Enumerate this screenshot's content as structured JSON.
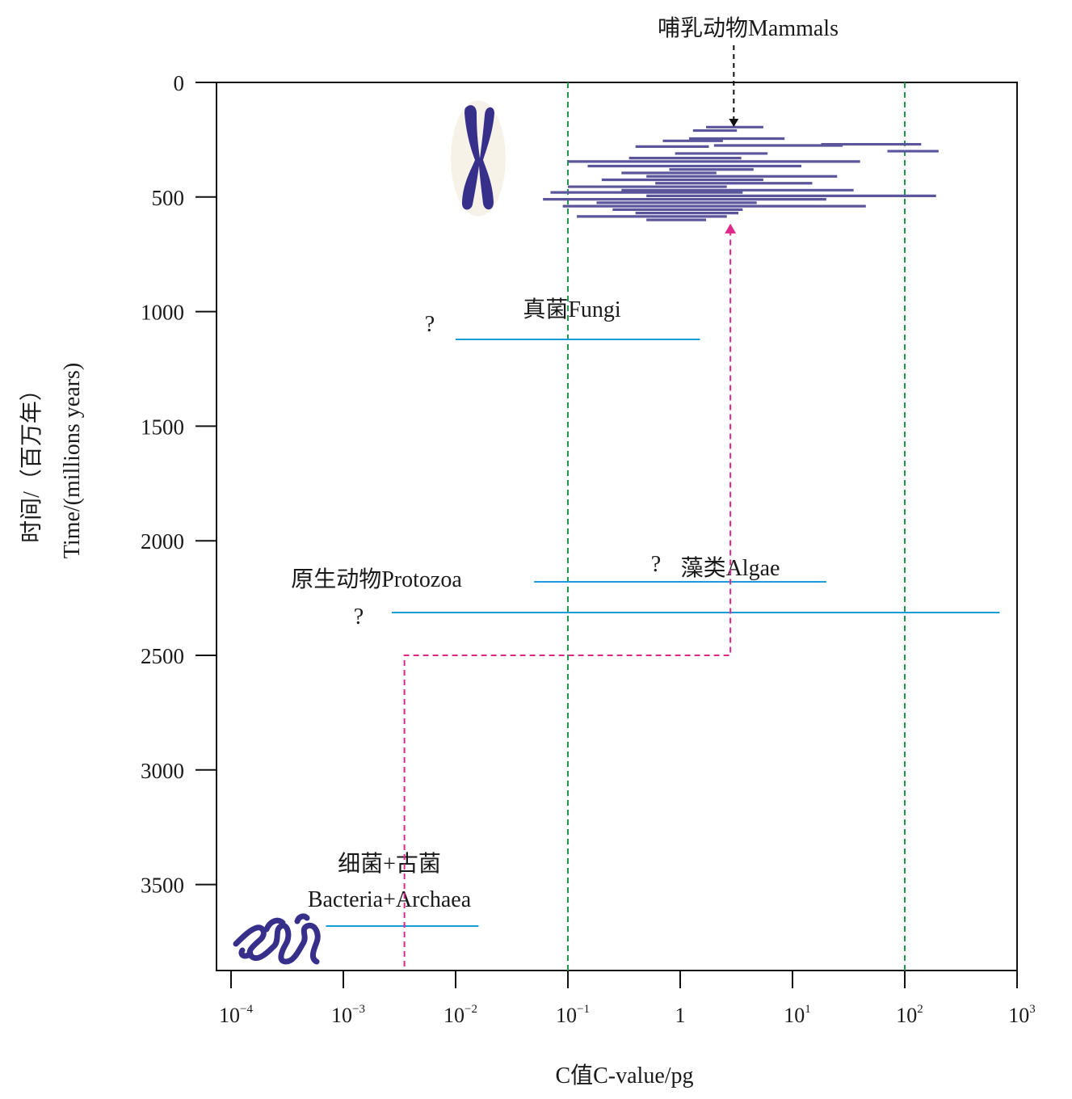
{
  "chart_data": {
    "type": "range",
    "title": "",
    "xlabel": "C值C-value/pg",
    "ylabel_cn": "时间/（百万年）",
    "ylabel_en": "Time/(millions years)",
    "x_scale": "log10",
    "xlim": [
      8e-05,
      1000
    ],
    "ylim": [
      0,
      4000
    ],
    "y_inverted": true,
    "y_ticks": [
      0,
      500,
      1000,
      1500,
      2000,
      2500,
      3000,
      3500
    ],
    "x_ticks": [
      {
        "base": "10",
        "exp": "−4",
        "value": 0.0001
      },
      {
        "base": "10",
        "exp": "−3",
        "value": 0.001
      },
      {
        "base": "10",
        "exp": "−2",
        "value": 0.01
      },
      {
        "base": "10",
        "exp": "−1",
        "value": 0.1
      },
      {
        "base": "1",
        "exp": "",
        "value": 1
      },
      {
        "base": "10",
        "exp": "1",
        "value": 10
      },
      {
        "base": "10",
        "exp": "2",
        "value": 100
      },
      {
        "base": "10",
        "exp": "3",
        "value": 1000
      }
    ],
    "reference_lines": [
      0.1,
      100
    ],
    "groups": [
      {
        "label": "真菌Fungi",
        "question": "?",
        "time": 1100,
        "c_min": 0.01,
        "c_max": 1.5
      },
      {
        "label": "藻类Algae",
        "question": "?",
        "time": 2200,
        "c_min": 0.05,
        "c_max": 20
      },
      {
        "label": "原生动物Protozoa",
        "question": "?",
        "time": 2330,
        "c_min": 0.0027,
        "c_max": 700
      },
      {
        "label_cn": "细菌+古菌",
        "label_en": "Bacteria+Archaea",
        "time": 3880,
        "c_min": 0.0007,
        "c_max": 0.016
      }
    ],
    "animal_ranges": [
      {
        "time": 195,
        "c_min": 1.7,
        "c_max": 5.5
      },
      {
        "time": 210,
        "c_min": 1.3,
        "c_max": 3.2
      },
      {
        "time": 245,
        "c_min": 1.2,
        "c_max": 8.5
      },
      {
        "time": 255,
        "c_min": 0.7,
        "c_max": 2.4
      },
      {
        "time": 270,
        "c_min": 18,
        "c_max": 140
      },
      {
        "time": 275,
        "c_min": 2,
        "c_max": 28
      },
      {
        "time": 280,
        "c_min": 0.4,
        "c_max": 1.8
      },
      {
        "time": 300,
        "c_min": 70,
        "c_max": 200
      },
      {
        "time": 310,
        "c_min": 0.9,
        "c_max": 6
      },
      {
        "time": 330,
        "c_min": 0.35,
        "c_max": 3.5
      },
      {
        "time": 345,
        "c_min": 0.1,
        "c_max": 40
      },
      {
        "time": 365,
        "c_min": 0.15,
        "c_max": 12
      },
      {
        "time": 380,
        "c_min": 0.8,
        "c_max": 4.5
      },
      {
        "time": 395,
        "c_min": 0.3,
        "c_max": 2.1
      },
      {
        "time": 410,
        "c_min": 0.5,
        "c_max": 25
      },
      {
        "time": 425,
        "c_min": 0.2,
        "c_max": 5.5
      },
      {
        "time": 440,
        "c_min": 0.6,
        "c_max": 15
      },
      {
        "time": 455,
        "c_min": 0.1,
        "c_max": 2.6
      },
      {
        "time": 470,
        "c_min": 0.3,
        "c_max": 35
      },
      {
        "time": 480,
        "c_min": 0.07,
        "c_max": 3.6
      },
      {
        "time": 495,
        "c_min": 0.5,
        "c_max": 190
      },
      {
        "time": 510,
        "c_min": 0.06,
        "c_max": 20
      },
      {
        "time": 525,
        "c_min": 0.18,
        "c_max": 4.8
      },
      {
        "time": 540,
        "c_min": 0.09,
        "c_max": 45
      },
      {
        "time": 555,
        "c_min": 0.25,
        "c_max": 3.6
      },
      {
        "time": 570,
        "c_min": 0.4,
        "c_max": 3.3
      },
      {
        "time": 585,
        "c_min": 0.12,
        "c_max": 2.6
      },
      {
        "time": 600,
        "c_min": 0.5,
        "c_max": 1.7
      }
    ],
    "annotations": {
      "mammals_label": "哺乳动物Mammals",
      "mammals_arrow_c": 3.0,
      "evolution_path": [
        {
          "c": 0.0035,
          "time": 4000
        },
        {
          "c": 0.0035,
          "time": 2500
        },
        {
          "c": 2.8,
          "time": 2500
        },
        {
          "c": 2.8,
          "time": 620
        }
      ]
    }
  }
}
